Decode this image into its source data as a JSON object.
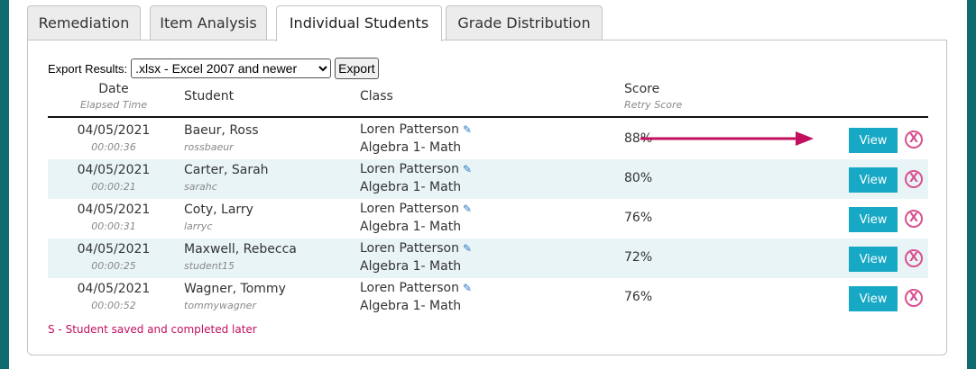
{
  "tabs": [
    {
      "label": "Remediation"
    },
    {
      "label": "Item Analysis"
    },
    {
      "label": "Individual Students",
      "active": true
    },
    {
      "label": "Grade Distribution"
    }
  ],
  "export": {
    "label": "Export Results:",
    "format_selected": ".xlsx - Excel 2007 and newer",
    "button_label": "Export"
  },
  "headers": {
    "date": "Date",
    "elapsed": "Elapsed Time",
    "student": "Student",
    "class": "Class",
    "score": "Score",
    "retry": "Retry Score"
  },
  "rows": [
    {
      "date": "04/05/2021",
      "time": "00:00:36",
      "name": "Baeur, Ross",
      "username": "rossbaeur",
      "teacher": "Loren Patterson",
      "course": "Algebra 1- Math",
      "score": "88%",
      "view_label": "View",
      "delete_label": "X"
    },
    {
      "date": "04/05/2021",
      "time": "00:00:21",
      "name": "Carter, Sarah",
      "username": "sarahc",
      "teacher": "Loren Patterson",
      "course": "Algebra 1- Math",
      "score": "80%",
      "view_label": "View",
      "delete_label": "X"
    },
    {
      "date": "04/05/2021",
      "time": "00:00:31",
      "name": "Coty, Larry",
      "username": "larryc",
      "teacher": "Loren Patterson",
      "course": "Algebra 1- Math",
      "score": "76%",
      "view_label": "View",
      "delete_label": "X"
    },
    {
      "date": "04/05/2021",
      "time": "00:00:25",
      "name": "Maxwell, Rebecca",
      "username": "student15",
      "teacher": "Loren Patterson",
      "course": "Algebra 1- Math",
      "score": "72%",
      "view_label": "View",
      "delete_label": "X"
    },
    {
      "date": "04/05/2021",
      "time": "00:00:52",
      "name": "Wagner, Tommy",
      "username": "tommywagner",
      "teacher": "Loren Patterson",
      "course": "Algebra 1- Math",
      "score": "76%",
      "view_label": "View",
      "delete_label": "X"
    }
  ],
  "footnote": "S - Student saved and completed later",
  "icons": {
    "edit": "pencil-icon",
    "delete": "x-circle-icon",
    "annotation": "arrow-right-icon"
  },
  "colors": {
    "view_button": "#16a8c4",
    "delete_icon": "#d9508f",
    "arrow": "#c2105e",
    "alt_row": "#e9f4f6",
    "page_frame": "#0f6b6e"
  }
}
